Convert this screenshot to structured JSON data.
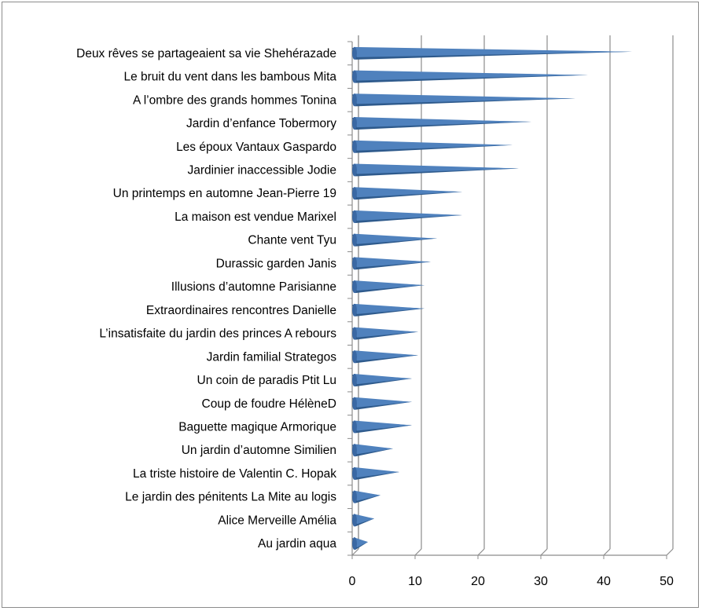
{
  "chart_data": {
    "type": "bar",
    "orientation": "horizontal",
    "title": "",
    "xlabel": "",
    "ylabel": "",
    "xlim": [
      0,
      50
    ],
    "x_ticks": [
      "0",
      "10",
      "20",
      "30",
      "40",
      "50"
    ],
    "grid": "vertical major gridlines",
    "legend": "none",
    "bar_color": "#4f81bd",
    "bar_shadow_color": "#2e5a8c",
    "categories": [
      "Deux rêves se partageaient sa vie  Shehérazade",
      "Le bruit du vent dans les bambous  Mita",
      "A l’ombre  des grands hommes Tonina",
      "Jardin d’enfance Tobermory",
      "Les époux Vantaux Gaspardo",
      "Jardinier inaccessible Jodie",
      "Un printemps en automne Jean-Pierre 19",
      "La maison est vendue  Marixel",
      "Chante vent Tyu",
      "Durassic garden Janis",
      "Illusions d’automne Parisianne",
      "Extraordinaires rencontres  Danielle",
      "L’insatisfaite du jardin des princes A rebours",
      "Jardin familial Strategos",
      "Un coin de paradis Ptit Lu",
      "Coup de foudre HélèneD",
      "Baguette magique Armorique",
      "Un jardin d’automne   Similien",
      "La triste histoire de Valentin C.  Hopak",
      "Le jardin des pénitents La Mite au logis",
      "Alice Merveille Amélia",
      "Au jardin    aqua"
    ],
    "values": [
      44,
      37,
      35,
      28,
      25,
      26,
      17,
      17,
      13,
      12,
      11,
      11,
      10,
      10,
      9,
      9,
      9,
      6,
      7,
      4,
      3,
      2
    ]
  }
}
